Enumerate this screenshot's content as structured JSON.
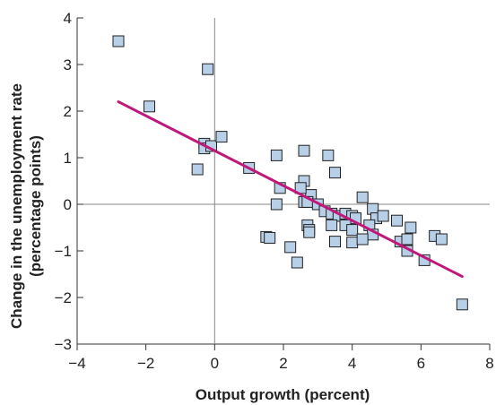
{
  "chart_data": {
    "type": "scatter",
    "xlabel": "Output growth (percent)",
    "ylabel_line1": "Change in the unemployment rate",
    "ylabel_line2": "(percentage points)",
    "xlim": [
      -4,
      8
    ],
    "ylim": [
      -3,
      4
    ],
    "x_ticks": [
      -4,
      -2,
      0,
      2,
      4,
      6,
      8
    ],
    "y_ticks": [
      -3,
      -2,
      -1,
      0,
      1,
      2,
      3,
      4
    ],
    "x_tick_labels": [
      "−4",
      "−2",
      "0",
      "2",
      "4",
      "6",
      "8"
    ],
    "y_tick_labels": [
      "−3",
      "−2",
      "−1",
      "0",
      "1",
      "2",
      "3",
      "4"
    ],
    "grid": false,
    "colors": {
      "marker_fill": "#b8cfe8",
      "marker_stroke": "#222222",
      "trend_line": "#c0187a",
      "axis_line": "#888888"
    },
    "points": [
      [
        -2.8,
        3.5
      ],
      [
        -0.2,
        2.9
      ],
      [
        -1.9,
        2.1
      ],
      [
        -0.3,
        1.3
      ],
      [
        -0.3,
        1.2
      ],
      [
        -0.1,
        1.25
      ],
      [
        0.2,
        1.45
      ],
      [
        -0.5,
        0.75
      ],
      [
        1.0,
        0.78
      ],
      [
        1.8,
        1.05
      ],
      [
        2.6,
        1.15
      ],
      [
        3.3,
        1.05
      ],
      [
        3.5,
        0.68
      ],
      [
        1.9,
        0.35
      ],
      [
        2.6,
        0.5
      ],
      [
        2.8,
        0.2
      ],
      [
        2.6,
        0.05
      ],
      [
        2.5,
        0.35
      ],
      [
        1.8,
        0.0
      ],
      [
        2.7,
        0.05
      ],
      [
        3.0,
        0.0
      ],
      [
        3.2,
        -0.15
      ],
      [
        3.4,
        -0.2
      ],
      [
        3.6,
        -0.25
      ],
      [
        3.8,
        -0.2
      ],
      [
        4.0,
        -0.25
      ],
      [
        4.1,
        -0.3
      ],
      [
        4.3,
        0.15
      ],
      [
        4.6,
        -0.1
      ],
      [
        4.7,
        -0.3
      ],
      [
        4.9,
        -0.25
      ],
      [
        5.3,
        -0.35
      ],
      [
        3.4,
        -0.45
      ],
      [
        3.8,
        -0.45
      ],
      [
        4.0,
        -0.55
      ],
      [
        4.5,
        -0.45
      ],
      [
        4.6,
        -0.65
      ],
      [
        2.7,
        -0.45
      ],
      [
        2.75,
        -0.55
      ],
      [
        2.75,
        -0.6
      ],
      [
        1.5,
        -0.7
      ],
      [
        1.6,
        -0.72
      ],
      [
        2.2,
        -0.92
      ],
      [
        3.5,
        -0.8
      ],
      [
        4.0,
        -0.82
      ],
      [
        4.3,
        -0.75
      ],
      [
        5.4,
        -0.8
      ],
      [
        5.6,
        -0.75
      ],
      [
        5.7,
        -0.5
      ],
      [
        5.6,
        -1.0
      ],
      [
        6.1,
        -1.2
      ],
      [
        6.4,
        -0.68
      ],
      [
        6.6,
        -0.75
      ],
      [
        2.4,
        -1.25
      ],
      [
        7.2,
        -2.15
      ]
    ],
    "trend_line": {
      "x": [
        -2.8,
        7.2
      ],
      "y": [
        2.2,
        -1.55
      ]
    }
  }
}
